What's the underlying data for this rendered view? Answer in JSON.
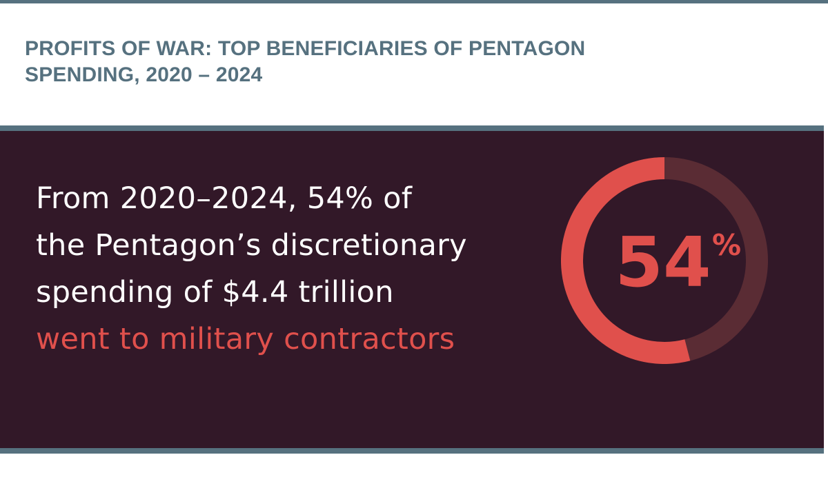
{
  "title": {
    "line1": "PROFITS OF WAR: TOP BENEFICIARIES OF PENTAGON",
    "line2": "SPENDING, 2020 – 2024"
  },
  "statement": {
    "line1": "From 2020–2024, 54% of",
    "line2": "the Pentagon’s discretionary",
    "line3": "spending of $4.4 trillion",
    "highlight": "went to military contractors"
  },
  "colors": {
    "accent": "#e0504c",
    "track": "#5a2c34",
    "panel": "#321828",
    "rule": "#56717f"
  },
  "chart_data": {
    "type": "pie",
    "style": "donut",
    "value_percent": 54,
    "label_number": "54",
    "label_unit": "%"
  }
}
